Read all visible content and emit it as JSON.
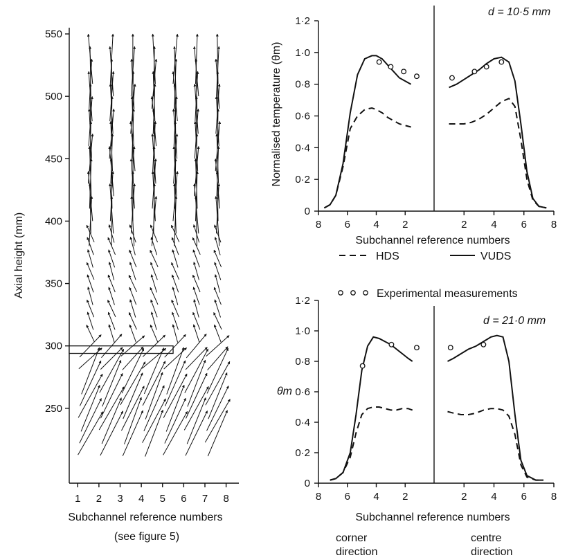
{
  "chart_data": [
    {
      "id": "vector_field",
      "type": "quiver",
      "ylabel": "Axial height (mm)",
      "xlabel": "Subchannel reference numbers",
      "xlabel_note": "(see figure 5)",
      "xlim": [
        0.6,
        8.6
      ],
      "ylim": [
        190,
        555
      ],
      "xticks": [
        "1",
        "2",
        "3",
        "4",
        "5",
        "6",
        "7",
        "8"
      ],
      "yticks": [
        "250",
        "300",
        "350",
        "400",
        "450",
        "500",
        "550"
      ],
      "obstruction": {
        "x_start": 0.6,
        "x_end": 5.5,
        "y_low": 294,
        "y_high": 300
      },
      "columns": [
        1.6,
        2.6,
        3.6,
        4.6,
        5.6,
        6.6,
        7.6
      ],
      "field": [
        {
          "y_min": 230,
          "y_max": 290,
          "angle_deg": 65,
          "length_mm": 40
        },
        {
          "y_min": 290,
          "y_max": 310,
          "angle_deg": 45,
          "length_mm": 25
        },
        {
          "y_min": 310,
          "y_max": 400,
          "angle_deg": 110,
          "length_mm": 15
        },
        {
          "y_min": 400,
          "y_max": 540,
          "angle_deg": 90,
          "length_mm": 40
        }
      ]
    },
    {
      "id": "panel_top",
      "type": "line",
      "annotation": "d = 10·5 mm",
      "ylabel": "Normalised temperature (θm)",
      "xlabel": "Subchannel reference numbers",
      "ylim": [
        0,
        1.2
      ],
      "yticks": [
        "0",
        "0·2",
        "0·4",
        "0·6",
        "0·8",
        "1·0",
        "1·2"
      ],
      "xticks_left": [
        "8",
        "6",
        "4",
        "2"
      ],
      "xticks_right": [
        "2",
        "4",
        "6",
        "8"
      ],
      "left": {
        "VUDS": {
          "x": [
            7.6,
            7.2,
            6.8,
            6.3,
            5.8,
            5.3,
            4.8,
            4.3,
            4.0,
            3.6,
            3.2,
            2.8,
            2.4,
            2.0,
            1.6
          ],
          "y": [
            0.02,
            0.04,
            0.1,
            0.3,
            0.62,
            0.86,
            0.96,
            0.98,
            0.98,
            0.96,
            0.92,
            0.88,
            0.84,
            0.82,
            0.8
          ]
        },
        "HDS": {
          "x": [
            7.6,
            7.2,
            6.8,
            6.3,
            5.8,
            5.3,
            4.8,
            4.3,
            4.0,
            3.6,
            3.2,
            2.8,
            2.4,
            2.0,
            1.6
          ],
          "y": [
            0.02,
            0.04,
            0.1,
            0.28,
            0.52,
            0.6,
            0.64,
            0.65,
            0.64,
            0.62,
            0.59,
            0.57,
            0.55,
            0.54,
            0.53
          ]
        },
        "Experimental": {
          "x": [
            3.8,
            3.0,
            2.1,
            1.2
          ],
          "y": [
            0.94,
            0.91,
            0.88,
            0.85
          ]
        }
      },
      "right": {
        "VUDS": {
          "x": [
            1.0,
            1.5,
            2.0,
            2.5,
            3.0,
            3.5,
            4.0,
            4.5,
            5.0,
            5.4,
            5.8,
            6.2,
            6.6,
            7.0,
            7.5
          ],
          "y": [
            0.78,
            0.8,
            0.83,
            0.86,
            0.89,
            0.93,
            0.96,
            0.97,
            0.94,
            0.82,
            0.55,
            0.25,
            0.08,
            0.03,
            0.02
          ]
        },
        "HDS": {
          "x": [
            1.0,
            1.5,
            2.0,
            2.5,
            3.0,
            3.5,
            4.0,
            4.5,
            5.0,
            5.4,
            5.8,
            6.2,
            6.6,
            7.0,
            7.5
          ],
          "y": [
            0.55,
            0.55,
            0.55,
            0.56,
            0.58,
            0.61,
            0.65,
            0.69,
            0.71,
            0.66,
            0.45,
            0.2,
            0.07,
            0.03,
            0.02
          ]
        },
        "Experimental": {
          "x": [
            1.2,
            2.7,
            3.5,
            4.5
          ],
          "y": [
            0.84,
            0.88,
            0.91,
            0.94
          ]
        }
      }
    },
    {
      "id": "panel_bottom",
      "type": "line",
      "annotation": "d = 21·0 mm",
      "ylabel": "θm",
      "xlabel": "Subchannel reference numbers",
      "ylim": [
        0,
        1.2
      ],
      "yticks": [
        "0",
        "0·2",
        "0·4",
        "0·6",
        "0·8",
        "1·0",
        "1·2"
      ],
      "xticks_left": [
        "8",
        "6",
        "4",
        "2"
      ],
      "xticks_right": [
        "2",
        "4",
        "6",
        "8"
      ],
      "direction_left": [
        "corner",
        "direction"
      ],
      "direction_right": [
        "centre",
        "direction"
      ],
      "left": {
        "VUDS": {
          "x": [
            7.2,
            6.8,
            6.3,
            5.8,
            5.4,
            5.0,
            4.6,
            4.2,
            3.8,
            3.4,
            3.0,
            2.6,
            2.2,
            1.8,
            1.5
          ],
          "y": [
            0.02,
            0.03,
            0.07,
            0.2,
            0.45,
            0.74,
            0.9,
            0.96,
            0.95,
            0.93,
            0.91,
            0.88,
            0.85,
            0.82,
            0.8
          ]
        },
        "HDS": {
          "x": [
            7.2,
            6.8,
            6.3,
            5.8,
            5.4,
            5.0,
            4.6,
            4.2,
            3.8,
            3.4,
            3.0,
            2.6,
            2.2,
            1.8,
            1.5
          ],
          "y": [
            0.02,
            0.03,
            0.07,
            0.17,
            0.33,
            0.45,
            0.49,
            0.5,
            0.5,
            0.49,
            0.48,
            0.48,
            0.49,
            0.49,
            0.48
          ]
        },
        "Experimental": {
          "x": [
            4.95,
            2.95,
            1.2
          ],
          "y": [
            0.77,
            0.91,
            0.89
          ]
        }
      },
      "right": {
        "VUDS": {
          "x": [
            0.9,
            1.3,
            1.8,
            2.3,
            2.8,
            3.3,
            3.8,
            4.2,
            4.6,
            5.0,
            5.4,
            5.8,
            6.2,
            6.8,
            7.3
          ],
          "y": [
            0.8,
            0.82,
            0.85,
            0.88,
            0.9,
            0.93,
            0.96,
            0.97,
            0.96,
            0.8,
            0.45,
            0.15,
            0.05,
            0.02,
            0.02
          ]
        },
        "HDS": {
          "x": [
            0.9,
            1.3,
            1.8,
            2.3,
            2.8,
            3.3,
            3.8,
            4.2,
            4.6,
            5.0,
            5.4,
            5.8,
            6.2,
            6.8,
            7.3
          ],
          "y": [
            0.47,
            0.46,
            0.45,
            0.45,
            0.46,
            0.48,
            0.49,
            0.49,
            0.48,
            0.44,
            0.32,
            0.12,
            0.04,
            0.02,
            0.02
          ]
        },
        "Experimental": {
          "x": [
            1.1,
            3.3
          ],
          "y": [
            0.89,
            0.91
          ]
        }
      }
    }
  ],
  "legend": {
    "hds": "HDS",
    "vuds": "VUDS",
    "experimental": "Experimental measurements"
  }
}
